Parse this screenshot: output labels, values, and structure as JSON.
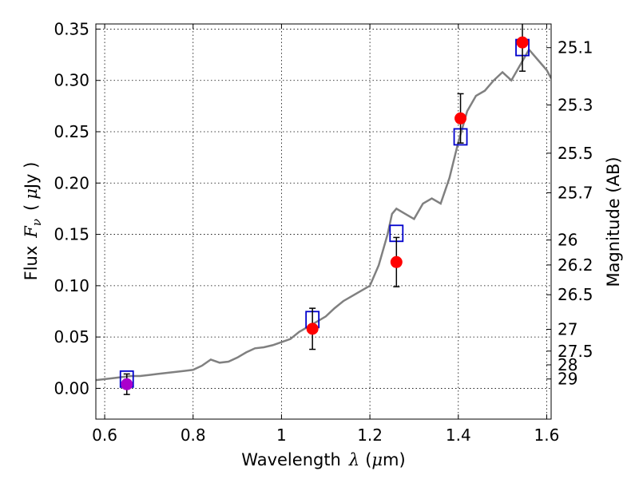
{
  "chart_data": {
    "type": "line",
    "xlabel": "Wavelength",
    "xlabel_math": "λ",
    "xlabel_unit_prefix": "(",
    "xlabel_unit_math": "μ",
    "xlabel_unit_suffix": "m)",
    "ylabel": "Flux",
    "ylabel_math": "F",
    "ylabel_math_sub": "ν",
    "ylabel_unit_prefix": "(",
    "ylabel_unit_math": "μ",
    "ylabel_unit_suffix": "Jy )",
    "y2label": "Magnitude (AB)",
    "xlim": [
      0.58,
      1.61
    ],
    "ylim": [
      -0.03,
      0.355
    ],
    "grid": true,
    "x_ticks": [
      0.6,
      0.8,
      1.0,
      1.2,
      1.4,
      1.6
    ],
    "x_tick_labels": [
      "0.6",
      "0.8",
      "1",
      "1.2",
      "1.4",
      "1.6"
    ],
    "y_ticks": [
      0.0,
      0.05,
      0.1,
      0.15,
      0.2,
      0.25,
      0.3,
      0.35
    ],
    "y_tick_labels": [
      "0.00",
      "0.05",
      "0.10",
      "0.15",
      "0.20",
      "0.25",
      "0.30",
      "0.35"
    ],
    "y2_ticks": [
      {
        "label": "25.1",
        "flux": 0.3319
      },
      {
        "label": "25.3",
        "flux": 0.2761
      },
      {
        "label": "25.5",
        "flux": 0.2291
      },
      {
        "label": "25.7",
        "flux": 0.1905
      },
      {
        "label": "26",
        "flux": 0.1445
      },
      {
        "label": "26.2",
        "flux": 0.1202
      },
      {
        "label": "26.5",
        "flux": 0.0912
      },
      {
        "label": "27",
        "flux": 0.0575
      },
      {
        "label": "27.5",
        "flux": 0.0363
      },
      {
        "label": "28",
        "flux": 0.0229
      },
      {
        "label": "29",
        "flux": 0.0091
      }
    ],
    "series": [
      {
        "kind": "spectrum",
        "color": "#808080",
        "x": [
          0.58,
          0.6,
          0.62,
          0.64,
          0.66,
          0.68,
          0.7,
          0.72,
          0.74,
          0.76,
          0.78,
          0.8,
          0.82,
          0.84,
          0.86,
          0.88,
          0.9,
          0.92,
          0.94,
          0.96,
          0.98,
          1.0,
          1.02,
          1.04,
          1.06,
          1.08,
          1.1,
          1.12,
          1.14,
          1.16,
          1.18,
          1.2,
          1.22,
          1.24,
          1.25,
          1.26,
          1.28,
          1.3,
          1.32,
          1.34,
          1.36,
          1.38,
          1.4,
          1.42,
          1.44,
          1.46,
          1.48,
          1.5,
          1.52,
          1.54,
          1.56,
          1.58,
          1.6,
          1.61
        ],
        "y": [
          0.008,
          0.009,
          0.01,
          0.011,
          0.012,
          0.012,
          0.013,
          0.014,
          0.015,
          0.016,
          0.017,
          0.018,
          0.022,
          0.028,
          0.025,
          0.026,
          0.03,
          0.035,
          0.039,
          0.04,
          0.042,
          0.045,
          0.048,
          0.055,
          0.06,
          0.065,
          0.07,
          0.078,
          0.085,
          0.09,
          0.095,
          0.1,
          0.12,
          0.15,
          0.17,
          0.175,
          0.17,
          0.165,
          0.18,
          0.185,
          0.18,
          0.205,
          0.24,
          0.27,
          0.285,
          0.29,
          0.3,
          0.308,
          0.3,
          0.315,
          0.33,
          0.32,
          0.31,
          0.302
        ]
      },
      {
        "kind": "squares",
        "color": "#0000cc",
        "x": [
          0.65,
          1.07,
          1.26,
          1.405,
          1.545
        ],
        "y": [
          0.009,
          0.067,
          0.151,
          0.245,
          0.332
        ]
      },
      {
        "kind": "points",
        "color": "#ff0000",
        "x": [
          1.07,
          1.26,
          1.405,
          1.545
        ],
        "y": [
          0.058,
          0.123,
          0.263,
          0.337
        ],
        "err": [
          0.02,
          0.024,
          0.024,
          0.028
        ]
      },
      {
        "kind": "points",
        "color": "#aa00cc",
        "x": [
          0.65
        ],
        "y": [
          0.004
        ],
        "err": [
          0.01
        ]
      }
    ]
  }
}
